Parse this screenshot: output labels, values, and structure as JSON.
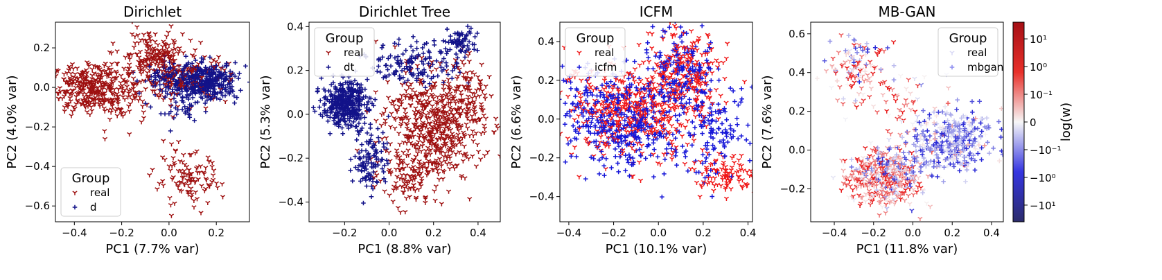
{
  "chart_data": [
    {
      "type": "scatter",
      "title": "Dirichlet",
      "xlabel": "PC1 (7.7% var)",
      "ylabel": "PC2 (4.0% var)",
      "xlim": [
        -0.48,
        0.34
      ],
      "ylim": [
        -0.68,
        0.33
      ],
      "xticks": [
        -0.4,
        -0.2,
        0.0,
        0.2
      ],
      "xtick_labels": [
        "−0.4",
        "−0.2",
        "0.0",
        "0.2"
      ],
      "yticks": [
        -0.6,
        -0.4,
        -0.2,
        0.0,
        0.2
      ],
      "ytick_labels": [
        "−0.6",
        "−0.4",
        "−0.2",
        "0.0",
        "0.2"
      ],
      "legend": {
        "title": "Group",
        "position": "lower-left",
        "entries": [
          "real",
          "d"
        ]
      },
      "series": [
        {
          "name": "real",
          "marker": "tri_down",
          "color": "#9e1010",
          "clusters": [
            {
              "cx": -0.33,
              "cy": 0.0,
              "sx": 0.08,
              "sy": 0.06,
              "n": 320
            },
            {
              "cx": -0.07,
              "cy": 0.17,
              "sx": 0.07,
              "sy": 0.06,
              "n": 160
            },
            {
              "cx": -0.2,
              "cy": -0.05,
              "sx": 0.06,
              "sy": 0.07,
              "n": 80
            },
            {
              "cx": 0.08,
              "cy": -0.47,
              "sx": 0.07,
              "sy": 0.07,
              "n": 110
            },
            {
              "cx": 0.05,
              "cy": 0.05,
              "sx": 0.1,
              "sy": 0.06,
              "n": 140
            }
          ]
        },
        {
          "name": "d",
          "marker": "plus",
          "color": "#121289",
          "clusters": [
            {
              "cx": 0.15,
              "cy": 0.03,
              "sx": 0.07,
              "sy": 0.045,
              "n": 400
            },
            {
              "cx": 0.0,
              "cy": 0.05,
              "sx": 0.06,
              "sy": 0.04,
              "n": 90
            },
            {
              "cx": 0.05,
              "cy": -0.12,
              "sx": 0.05,
              "sy": 0.05,
              "n": 40
            }
          ]
        }
      ]
    },
    {
      "type": "scatter",
      "title": "Dirichlet Tree",
      "xlabel": "PC1 (8.8% var)",
      "ylabel": "PC2 (5.3% var)",
      "xlim": [
        -0.36,
        0.5
      ],
      "ylim": [
        -0.49,
        0.42
      ],
      "xticks": [
        -0.2,
        0.0,
        0.2,
        0.4
      ],
      "xtick_labels": [
        "−0.2",
        "0.0",
        "0.2",
        "0.4"
      ],
      "yticks": [
        -0.4,
        -0.2,
        0.0,
        0.2,
        0.4
      ],
      "ytick_labels": [
        "−0.4",
        "−0.2",
        "0.0",
        "0.2",
        "0.4"
      ],
      "legend": {
        "title": "Group",
        "position": "upper-left",
        "entries": [
          "real",
          "dt"
        ]
      },
      "series": [
        {
          "name": "real",
          "marker": "tri_down",
          "color": "#9e1010",
          "clusters": [
            {
              "cx": 0.2,
              "cy": -0.05,
              "sx": 0.11,
              "sy": 0.12,
              "n": 560
            },
            {
              "cx": 0.1,
              "cy": -0.3,
              "sx": 0.07,
              "sy": 0.06,
              "n": 90
            },
            {
              "cx": 0.35,
              "cy": 0.1,
              "sx": 0.05,
              "sy": 0.08,
              "n": 70
            }
          ]
        },
        {
          "name": "dt",
          "marker": "plus",
          "color": "#121289",
          "clusters": [
            {
              "cx": -0.2,
              "cy": 0.05,
              "sx": 0.05,
              "sy": 0.05,
              "n": 380
            },
            {
              "cx": -0.08,
              "cy": -0.2,
              "sx": 0.04,
              "sy": 0.08,
              "n": 110
            },
            {
              "cx": 0.12,
              "cy": 0.23,
              "sx": 0.1,
              "sy": 0.05,
              "n": 140
            },
            {
              "cx": 0.32,
              "cy": 0.33,
              "sx": 0.04,
              "sy": 0.03,
              "n": 70
            }
          ]
        }
      ]
    },
    {
      "type": "scatter",
      "title": "ICFM",
      "xlabel": "PC1 (10.1% var)",
      "ylabel": "PC2 (6.6% var)",
      "xlim": [
        -0.44,
        0.42
      ],
      "ylim": [
        -0.53,
        0.5
      ],
      "xticks": [
        -0.4,
        -0.2,
        0.0,
        0.2,
        0.4
      ],
      "xtick_labels": [
        "−0.4",
        "−0.2",
        "0.0",
        "0.2",
        "0.4"
      ],
      "yticks": [
        -0.4,
        -0.2,
        0.0,
        0.2,
        0.4
      ],
      "ytick_labels": [
        "−0.4",
        "−0.2",
        "0.0",
        "0.2",
        "0.4"
      ],
      "legend": {
        "title": "Group",
        "position": "upper-left",
        "entries": [
          "real",
          "icfm"
        ]
      },
      "series": [
        {
          "name": "real",
          "marker": "tri_down",
          "color": "#f01818",
          "clusters": [
            {
              "cx": -0.1,
              "cy": 0.05,
              "sx": 0.16,
              "sy": 0.13,
              "n": 420
            },
            {
              "cx": 0.12,
              "cy": 0.25,
              "sx": 0.08,
              "sy": 0.1,
              "n": 180
            },
            {
              "cx": 0.3,
              "cy": -0.3,
              "sx": 0.07,
              "sy": 0.06,
              "n": 100
            }
          ]
        },
        {
          "name": "icfm",
          "marker": "plus",
          "color": "#1616d8",
          "clusters": [
            {
              "cx": -0.15,
              "cy": 0.0,
              "sx": 0.15,
              "sy": 0.13,
              "n": 440
            },
            {
              "cx": 0.1,
              "cy": 0.25,
              "sx": 0.07,
              "sy": 0.1,
              "n": 170
            },
            {
              "cx": 0.25,
              "cy": -0.05,
              "sx": 0.08,
              "sy": 0.12,
              "n": 120
            }
          ]
        }
      ]
    },
    {
      "type": "scatter",
      "title": "MB-GAN",
      "xlabel": "PC1 (11.8% var)",
      "ylabel": "PC2 (7.6% var)",
      "xlim": [
        -0.52,
        0.46
      ],
      "ylim": [
        -0.37,
        0.66
      ],
      "xticks": [
        -0.4,
        -0.2,
        0.0,
        0.2,
        0.4
      ],
      "xtick_labels": [
        "−0.4",
        "−0.2",
        "0.0",
        "0.2",
        "0.4"
      ],
      "yticks": [
        -0.2,
        0.0,
        0.2,
        0.4,
        0.6
      ],
      "ytick_labels": [
        "−0.2",
        "0.0",
        "0.2",
        "0.4",
        "0.6"
      ],
      "legend": {
        "title": "Group",
        "position": "upper-right",
        "entries": [
          "real",
          "mbgan"
        ]
      },
      "legend_colors": [
        "#d9d9f5",
        "#8c8cf0"
      ],
      "series": [
        {
          "name": "real",
          "marker": "tri_down",
          "color": "#e04040",
          "weight_bias": 0.6,
          "clusters": [
            {
              "cx": -0.15,
              "cy": -0.15,
              "sx": 0.1,
              "sy": 0.07,
              "n": 320
            },
            {
              "cx": -0.3,
              "cy": 0.4,
              "sx": 0.08,
              "sy": 0.08,
              "n": 70
            },
            {
              "cx": -0.05,
              "cy": 0.25,
              "sx": 0.1,
              "sy": 0.08,
              "n": 50
            }
          ]
        },
        {
          "name": "mbgan",
          "marker": "plus",
          "color": "#4a4ae8",
          "weight_bias": -0.5,
          "clusters": [
            {
              "cx": 0.2,
              "cy": 0.05,
              "sx": 0.1,
              "sy": 0.08,
              "n": 360
            },
            {
              "cx": -0.1,
              "cy": -0.1,
              "sx": 0.08,
              "sy": 0.06,
              "n": 120
            },
            {
              "cx": -0.3,
              "cy": 0.45,
              "sx": 0.07,
              "sy": 0.07,
              "n": 40
            }
          ]
        }
      ]
    }
  ],
  "colorbar": {
    "label": "log(w)",
    "scale": "symlog",
    "range": [
      -40,
      40
    ],
    "ticks": [
      {
        "value": 10,
        "label": "10¹"
      },
      {
        "value": 1,
        "label": "10⁰"
      },
      {
        "value": 0.1,
        "label": "10⁻¹"
      },
      {
        "value": 0,
        "label": "0"
      },
      {
        "value": -0.1,
        "label": "−10⁻¹"
      },
      {
        "value": -1,
        "label": "−10⁰"
      },
      {
        "value": -10,
        "label": "−10¹"
      }
    ],
    "colors": {
      "top": "#a50f15",
      "mid": "#f7f7f7",
      "bottom": "#2c2c6b"
    }
  }
}
